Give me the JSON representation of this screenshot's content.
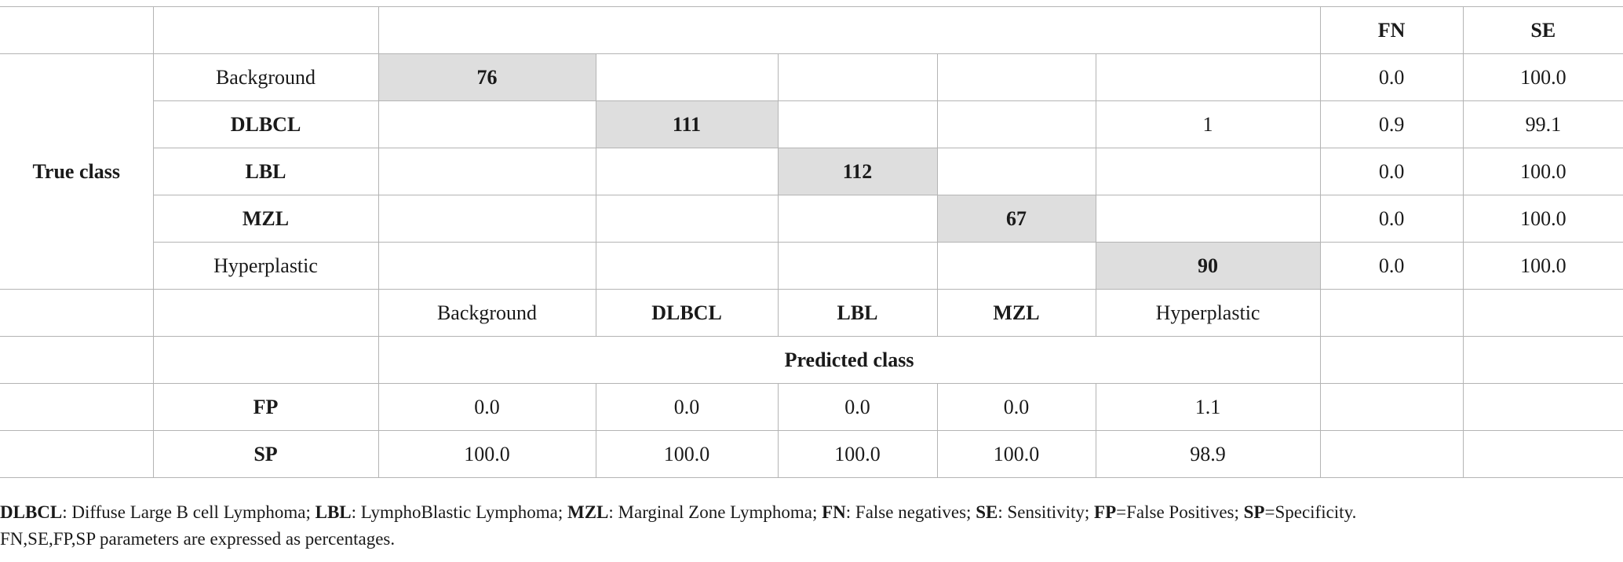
{
  "table": {
    "header": {
      "fn": "FN",
      "se": "SE"
    },
    "true_class_label": "True class",
    "rows": [
      {
        "label": "Background",
        "counts": [
          "76",
          "",
          "",
          "",
          ""
        ],
        "fn": "0.0",
        "se": "100.0"
      },
      {
        "label": "DLBCL",
        "counts": [
          "",
          "111",
          "",
          "",
          "1"
        ],
        "fn": "0.9",
        "se": "99.1"
      },
      {
        "label": "LBL",
        "counts": [
          "",
          "",
          "112",
          "",
          ""
        ],
        "fn": "0.0",
        "se": "100.0"
      },
      {
        "label": "MZL",
        "counts": [
          "",
          "",
          "",
          "67",
          ""
        ],
        "fn": "0.0",
        "se": "100.0"
      },
      {
        "label": "Hyperplastic",
        "counts": [
          "",
          "",
          "",
          "",
          "90"
        ],
        "fn": "0.0",
        "se": "100.0"
      }
    ],
    "predicted_columns": [
      "Background",
      "DLBCL",
      "LBL",
      "MZL",
      "Hyperplastic"
    ],
    "predicted_class_label": "Predicted class",
    "fp": {
      "label": "FP",
      "values": [
        "0.0",
        "0.0",
        "0.0",
        "0.0",
        "1.1"
      ]
    },
    "sp": {
      "label": "SP",
      "values": [
        "100.0",
        "100.0",
        "100.0",
        "100.0",
        "98.9"
      ]
    }
  },
  "footnote": {
    "items": [
      {
        "term": "DLBCL",
        "def": ": Diffuse Large B cell Lymphoma; "
      },
      {
        "term": "LBL",
        "def": ": LymphoBlastic Lymphoma; "
      },
      {
        "term": "MZL",
        "def": ": Marginal Zone Lymphoma; "
      },
      {
        "term": "FN",
        "def": ": False negatives; "
      },
      {
        "term": "SE",
        "def": ": Sensitivity; "
      },
      {
        "term": "FP",
        "def": "=False Positives; "
      },
      {
        "term": "SP",
        "def": "=Specificity."
      }
    ],
    "line2": "FN,SE,FP,SP parameters are expressed as percentages."
  }
}
